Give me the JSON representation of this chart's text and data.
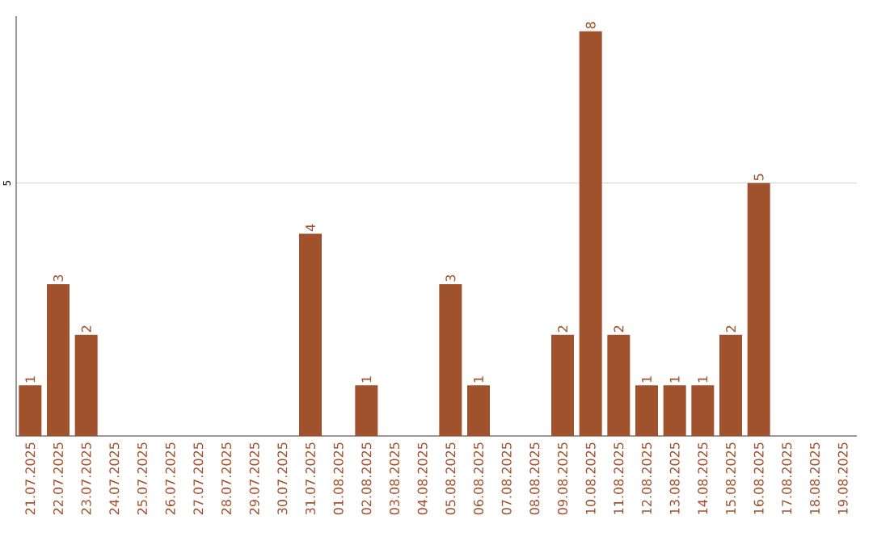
{
  "chart_data": {
    "type": "bar",
    "categories": [
      "21.07.2025",
      "22.07.2025",
      "23.07.2025",
      "24.07.2025",
      "25.07.2025",
      "26.07.2025",
      "27.07.2025",
      "28.07.2025",
      "29.07.2025",
      "30.07.2025",
      "31.07.2025",
      "01.08.2025",
      "02.08.2025",
      "03.08.2025",
      "04.08.2025",
      "05.08.2025",
      "06.08.2025",
      "07.08.2025",
      "08.08.2025",
      "09.08.2025",
      "10.08.2025",
      "11.08.2025",
      "12.08.2025",
      "13.08.2025",
      "14.08.2025",
      "15.08.2025",
      "16.08.2025",
      "17.08.2025",
      "18.08.2025",
      "19.08.2025"
    ],
    "values": [
      1,
      3,
      2,
      0,
      0,
      0,
      0,
      0,
      0,
      0,
      4,
      0,
      1,
      0,
      0,
      3,
      1,
      0,
      0,
      2,
      8,
      2,
      1,
      1,
      1,
      2,
      5,
      0,
      0,
      0
    ],
    "value_labels": [
      "1",
      "3",
      "2",
      null,
      null,
      null,
      null,
      null,
      null,
      null,
      "4",
      null,
      "1",
      null,
      null,
      "3",
      "1",
      null,
      null,
      "2",
      "8",
      "2",
      "1",
      "1",
      "1",
      "2",
      "5",
      null,
      null,
      null
    ],
    "color": "#a0522d",
    "ylim": [
      0,
      8.3
    ],
    "yticks": [
      5
    ],
    "grid": "y"
  }
}
